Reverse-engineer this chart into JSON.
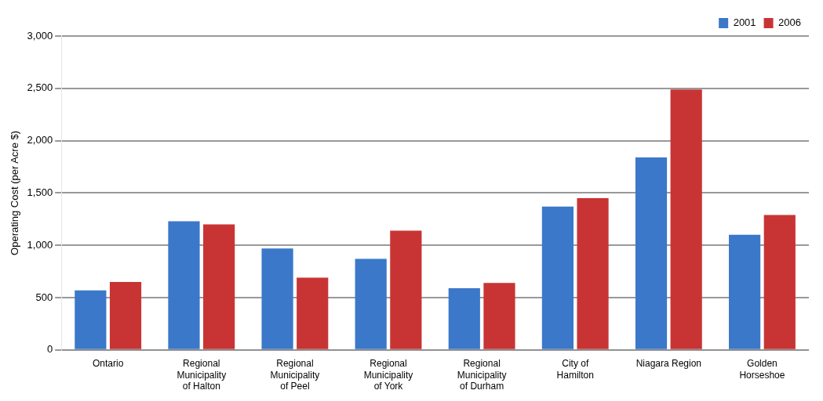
{
  "chart_data": {
    "type": "bar",
    "ylabel": "Operating Cost (per Acre $)",
    "categories": [
      "Ontario",
      "Regional Municipality of Halton",
      "Regional Municipality of Peel",
      "Regional Municipality of York",
      "Regional Municipality of Durham",
      "City of Hamilton",
      "Niagara Region",
      "Golden Horseshoe"
    ],
    "series": [
      {
        "name": "2001",
        "color": "#3b78c9",
        "values": [
          570,
          1230,
          970,
          870,
          590,
          1370,
          1840,
          1100
        ]
      },
      {
        "name": "2006",
        "color": "#c83434",
        "values": [
          650,
          1200,
          690,
          1140,
          640,
          1450,
          2490,
          1290
        ]
      }
    ],
    "ylim": [
      0,
      3000
    ],
    "yticks": [
      {
        "value": 0,
        "label": "0"
      },
      {
        "value": 500,
        "label": "500"
      },
      {
        "value": 1000,
        "label": "1,000"
      },
      {
        "value": 1500,
        "label": "1,500"
      },
      {
        "value": 2000,
        "label": "2,000"
      },
      {
        "value": 2500,
        "label": "2,500"
      },
      {
        "value": 3000,
        "label": "3,000"
      }
    ],
    "grid": "y",
    "legend": "top right"
  }
}
